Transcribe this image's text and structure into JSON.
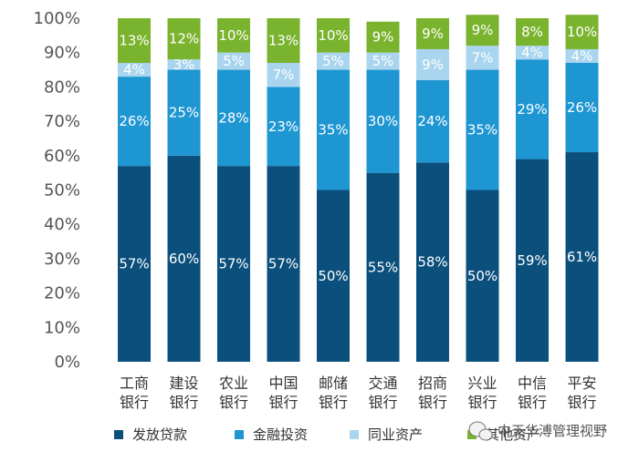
{
  "chart_data": {
    "type": "bar",
    "stacked": true,
    "categories": [
      [
        "工商",
        "银行"
      ],
      [
        "建设",
        "银行"
      ],
      [
        "农业",
        "银行"
      ],
      [
        "中国",
        "银行"
      ],
      [
        "邮储",
        "银行"
      ],
      [
        "交通",
        "银行"
      ],
      [
        "招商",
        "银行"
      ],
      [
        "兴业",
        "银行"
      ],
      [
        "中信",
        "银行"
      ],
      [
        "平安",
        "银行"
      ]
    ],
    "series": [
      {
        "name": "发放贷款",
        "color": "#0b4f7c",
        "values": [
          57,
          60,
          57,
          57,
          50,
          55,
          58,
          50,
          59,
          61
        ]
      },
      {
        "name": "金融投资",
        "color": "#1e96d2",
        "values": [
          26,
          25,
          28,
          23,
          35,
          30,
          24,
          35,
          29,
          26
        ]
      },
      {
        "name": "同业资产",
        "color": "#a9d5ef",
        "values": [
          4,
          3,
          5,
          7,
          5,
          5,
          9,
          7,
          4,
          4
        ]
      },
      {
        "name": "其他资产",
        "color": "#7ab32e",
        "values": [
          13,
          12,
          10,
          13,
          10,
          9,
          9,
          9,
          8,
          10
        ]
      }
    ],
    "ylim": [
      0,
      100
    ],
    "yticks": [
      "0%",
      "10%",
      "20%",
      "30%",
      "40%",
      "50%",
      "60%",
      "70%",
      "80%",
      "90%",
      "100%"
    ],
    "value_suffix": "%",
    "legend_position": "bottom-left"
  },
  "watermark": {
    "text": "中天华溥管理视野",
    "icon": "wechat-icon"
  }
}
